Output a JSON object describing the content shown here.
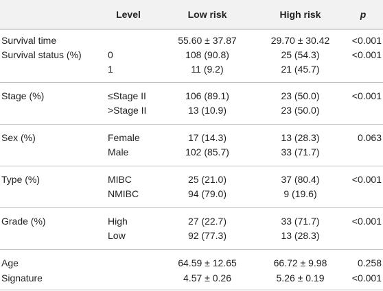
{
  "header": {
    "col0": "",
    "col1": "Level",
    "col2": "Low risk",
    "col3": "High risk",
    "col4": "p"
  },
  "rows": [
    {
      "label": "Survival time",
      "level": "",
      "low": "55.60 ± 37.87",
      "high": "29.70 ± 30.42",
      "p": "<0.001"
    },
    {
      "label": "Survival status (%)",
      "level": "0",
      "low": "108 (90.8)",
      "high": "25 (54.3)",
      "p": "<0.001"
    },
    {
      "label": "",
      "level": "1",
      "low": "11 (9.2)",
      "high": "21 (45.7)",
      "p": ""
    },
    {
      "label": "Stage (%)",
      "level": "≤Stage II",
      "low": "106 (89.1)",
      "high": "23 (50.0)",
      "p": "<0.001"
    },
    {
      "label": "",
      "level": ">Stage II",
      "low": "13 (10.9)",
      "high": "23 (50.0)",
      "p": ""
    },
    {
      "label": "Sex (%)",
      "level": "Female",
      "low": "17 (14.3)",
      "high": "13 (28.3)",
      "p": "0.063"
    },
    {
      "label": "",
      "level": "Male",
      "low": "102 (85.7)",
      "high": "33 (71.7)",
      "p": ""
    },
    {
      "label": "Type (%)",
      "level": "MIBC",
      "low": "25 (21.0)",
      "high": "37 (80.4)",
      "p": "<0.001"
    },
    {
      "label": "",
      "level": "NMIBC",
      "low": "94 (79.0)",
      "high": "9 (19.6)",
      "p": ""
    },
    {
      "label": "Grade (%)",
      "level": "High",
      "low": "27 (22.7)",
      "high": "33 (71.7)",
      "p": "<0.001"
    },
    {
      "label": "",
      "level": "Low",
      "low": "92 (77.3)",
      "high": "13 (28.3)",
      "p": ""
    },
    {
      "label": "Age",
      "level": "",
      "low": "64.59 ± 12.65",
      "high": "66.72 ± 9.98",
      "p": "0.258"
    },
    {
      "label": "Signature",
      "level": "",
      "low": "4.57 ± 0.26",
      "high": "5.26 ± 0.19",
      "p": "<0.001"
    }
  ]
}
